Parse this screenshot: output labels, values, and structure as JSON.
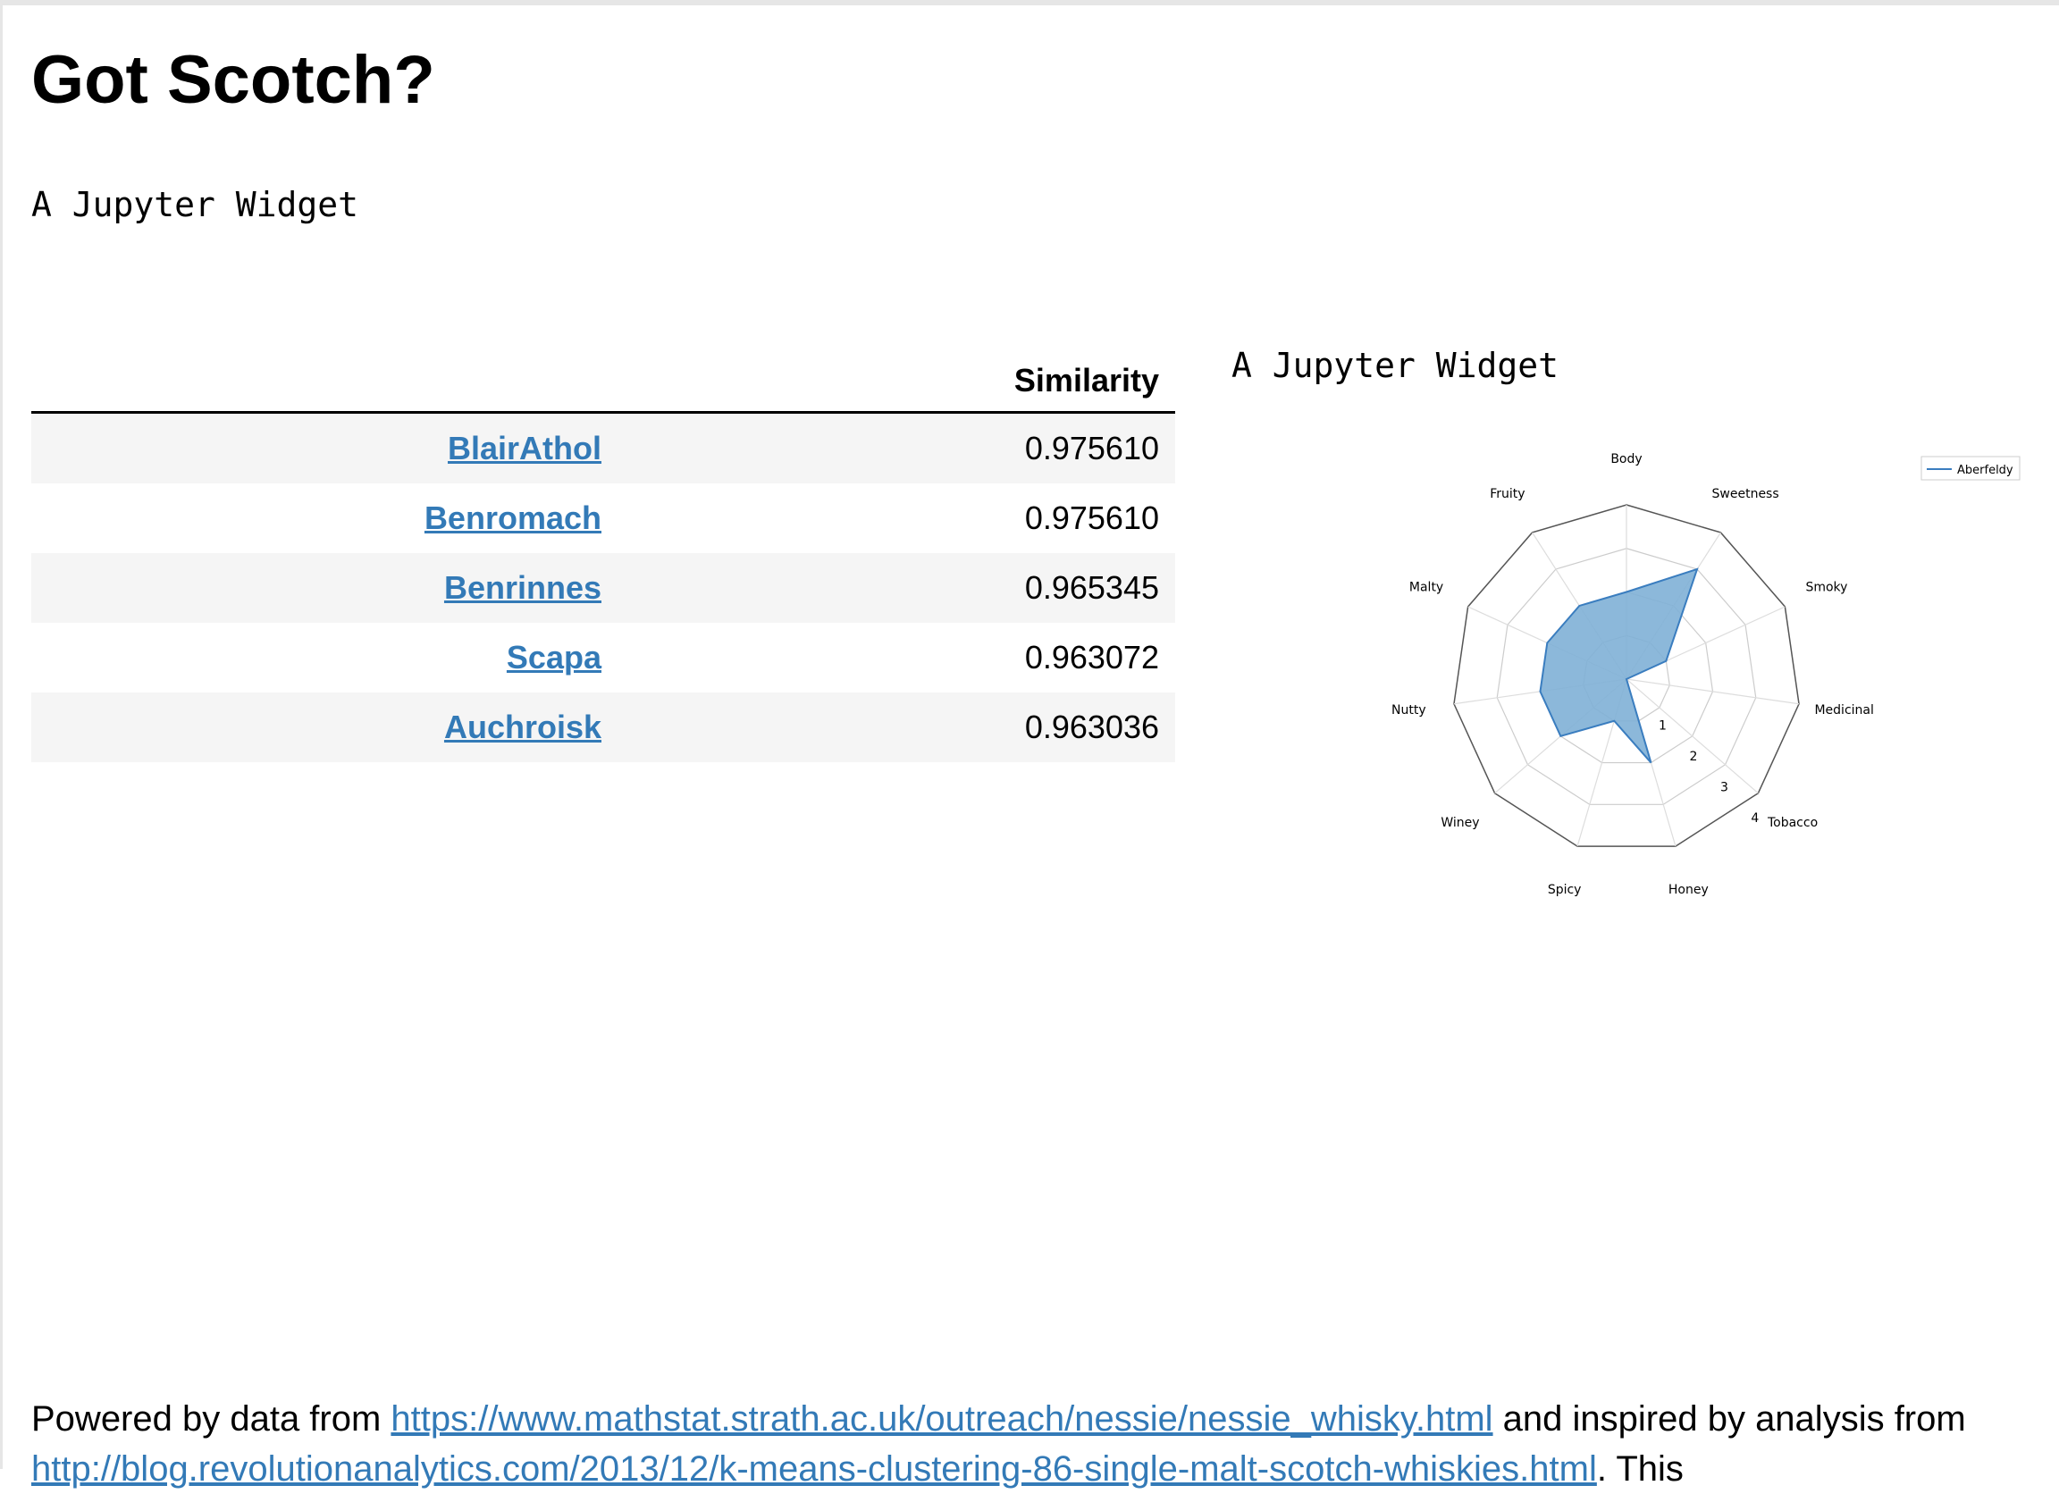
{
  "page": {
    "title": "Got Scotch?",
    "widget_text_top": "A Jupyter Widget",
    "widget_text_chart": "A Jupyter Widget"
  },
  "table": {
    "headers": [
      "",
      "Similarity"
    ],
    "rows": [
      {
        "name": "BlairAthol",
        "similarity": "0.975610"
      },
      {
        "name": "Benromach",
        "similarity": "0.975610"
      },
      {
        "name": "Benrinnes",
        "similarity": "0.965345"
      },
      {
        "name": "Scapa",
        "similarity": "0.963072"
      },
      {
        "name": "Auchroisk",
        "similarity": "0.963036"
      }
    ]
  },
  "footer": {
    "prefix": "Powered by data from ",
    "link1": "https://www.mathstat.strath.ac.uk/outreach/nessie/nessie_whisky.html",
    "middle": " and inspired by analysis from ",
    "link2": "http://blog.revolutionanalytics.com/2013/12/k-means-clustering-86-single-malt-scotch-whiskies.html",
    "suffix": ". This"
  },
  "colors": {
    "link": "#337ab7",
    "fill": "#7fb0d6",
    "stroke": "#3a7dbf"
  },
  "chart_data": {
    "type": "radar",
    "categories": [
      "Body",
      "Sweetness",
      "Smoky",
      "Medicinal",
      "Tobacco",
      "Honey",
      "Spicy",
      "Winey",
      "Nutty",
      "Malty",
      "Fruity"
    ],
    "series": [
      {
        "name": "Aberfeldy",
        "values": [
          2,
          3,
          1,
          0,
          0,
          2,
          1,
          2,
          2,
          2,
          2
        ]
      }
    ],
    "radial_ticks": [
      "1",
      "2",
      "3",
      "4"
    ],
    "rlim": [
      0,
      4
    ],
    "legend": "top-right"
  }
}
